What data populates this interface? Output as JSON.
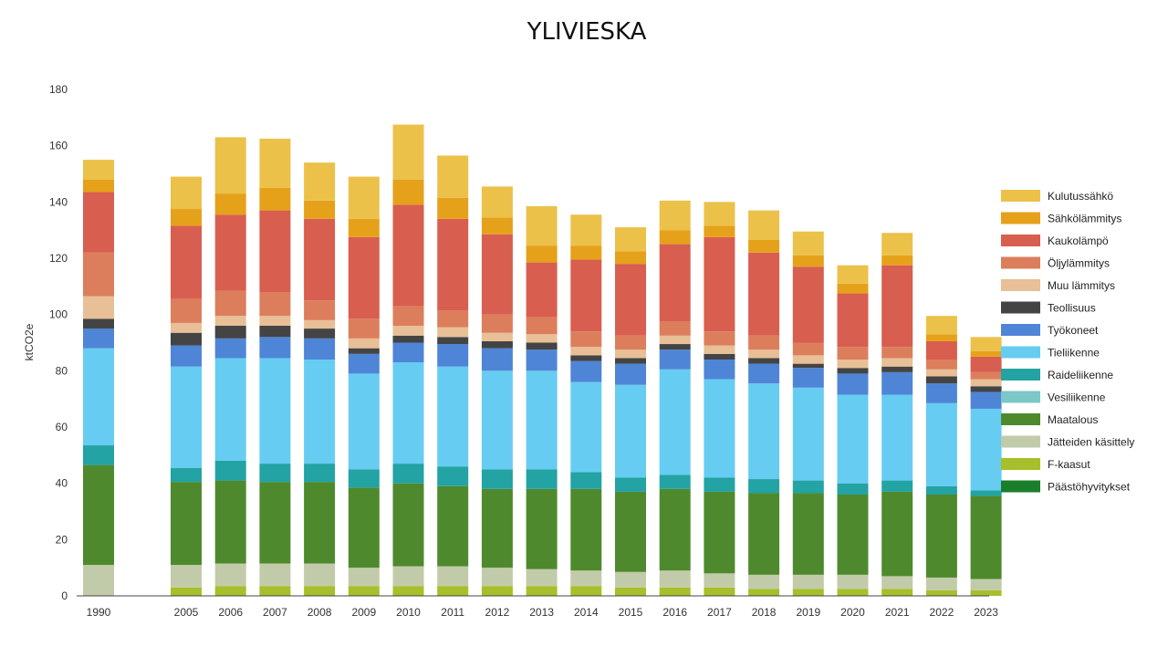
{
  "chart_data": {
    "type": "bar",
    "stacked": true,
    "title": "YLIVIESKA",
    "xlabel": "",
    "ylabel": "ktCO2e",
    "ylim": [
      0,
      180
    ],
    "yticks": [
      0,
      20,
      40,
      60,
      80,
      100,
      120,
      140,
      160,
      180
    ],
    "grid": false,
    "legend_position": "right",
    "categories": [
      "1990",
      "2005",
      "2006",
      "2007",
      "2008",
      "2009",
      "2010",
      "2011",
      "2012",
      "2013",
      "2014",
      "2015",
      "2016",
      "2017",
      "2018",
      "2019",
      "2020",
      "2021",
      "2022",
      "2023"
    ],
    "series": [
      {
        "name": "Päästöhyvitykset",
        "color": "#1a7f2a",
        "values": [
          0,
          0,
          0,
          0,
          0,
          0,
          0,
          0,
          0,
          0,
          0,
          0,
          0,
          0,
          0,
          0,
          0,
          0,
          0,
          0
        ]
      },
      {
        "name": "F-kaasut",
        "color": "#a6bf2a",
        "values": [
          0,
          3,
          3.5,
          3.5,
          3.5,
          3.5,
          3.5,
          3.5,
          3.5,
          3.5,
          3.5,
          3,
          3,
          3,
          2.5,
          2.5,
          2.5,
          2.5,
          2,
          2
        ]
      },
      {
        "name": "Jätteiden käsittely",
        "color": "#c2cba9",
        "values": [
          11,
          8,
          8,
          8,
          8,
          6.5,
          7,
          7,
          6.5,
          6,
          5.5,
          5.5,
          6,
          5,
          5,
          5,
          5,
          4.5,
          4.5,
          4
        ]
      },
      {
        "name": "Maatalous",
        "color": "#4e8a2d",
        "values": [
          35.5,
          29.5,
          29.5,
          29,
          29,
          28.5,
          29.5,
          28.5,
          28,
          28.5,
          29,
          28.5,
          29,
          29,
          29,
          29,
          28.5,
          30,
          29.5,
          29.5
        ]
      },
      {
        "name": "Vesiliikenne",
        "color": "#7cc7c7",
        "values": [
          0,
          0,
          0,
          0,
          0,
          0,
          0,
          0,
          0,
          0,
          0,
          0,
          0,
          0,
          0,
          0,
          0,
          0,
          0,
          0
        ]
      },
      {
        "name": "Raideliikenne",
        "color": "#23a3a3",
        "values": [
          7,
          5,
          7,
          6.5,
          6.5,
          6.5,
          7,
          7,
          7,
          7,
          6,
          5,
          5,
          5,
          5,
          4.5,
          4,
          4,
          3,
          2
        ]
      },
      {
        "name": "Tieliikenne",
        "color": "#66ccf2",
        "values": [
          34.5,
          36,
          36.5,
          37.5,
          37,
          34,
          36,
          35.5,
          35,
          35,
          32,
          33,
          37.5,
          35,
          34,
          33,
          31.5,
          30.5,
          29.5,
          29
        ]
      },
      {
        "name": "Työkoneet",
        "color": "#4f85d6",
        "values": [
          7,
          7.5,
          7,
          7.5,
          7.5,
          7,
          7,
          8,
          8,
          7.5,
          7.5,
          7.5,
          7,
          7,
          7,
          7,
          7.5,
          8,
          7,
          6
        ]
      },
      {
        "name": "Teollisuus",
        "color": "#444444",
        "values": [
          3.5,
          4.5,
          4.5,
          4,
          3.5,
          2,
          2.5,
          2.5,
          2.5,
          2.5,
          2,
          2,
          2,
          2,
          2,
          1.5,
          2,
          2,
          2.5,
          2
        ]
      },
      {
        "name": "Muu lämmitys",
        "color": "#e8bf96",
        "values": [
          8,
          3.5,
          3.5,
          3.5,
          3,
          3.5,
          3.5,
          3.5,
          3,
          3,
          3,
          3,
          3,
          3,
          3,
          3,
          3,
          3,
          2.5,
          2.5
        ]
      },
      {
        "name": "Öljylämmitys",
        "color": "#dc7e5c",
        "values": [
          15.5,
          8.5,
          9,
          8.5,
          7,
          7,
          7,
          6,
          6.5,
          6,
          5.5,
          5,
          5,
          5,
          5,
          4.5,
          4.5,
          4,
          3.5,
          2.5
        ]
      },
      {
        "name": "Kaukolämpö",
        "color": "#d85e4f",
        "values": [
          21.5,
          26,
          27,
          29,
          29,
          29,
          36,
          32.5,
          28.5,
          19.5,
          25.5,
          25.5,
          27.5,
          33.5,
          29.5,
          27,
          19,
          29,
          6.5,
          5.5
        ]
      },
      {
        "name": "Sähkölämmitys",
        "color": "#e6a11a",
        "values": [
          4.5,
          6,
          7.5,
          8,
          6.5,
          6.5,
          9,
          7.5,
          6,
          6,
          5,
          4.5,
          5,
          4,
          4.5,
          4,
          3.5,
          3.5,
          2.5,
          2
        ]
      },
      {
        "name": "Kulutussähkö",
        "color": "#ecc149",
        "values": [
          7,
          11.5,
          20,
          17.5,
          13.5,
          15,
          19.5,
          15,
          11,
          14,
          11,
          8.5,
          10.5,
          8.5,
          10.5,
          8.5,
          6.5,
          8,
          6.5,
          5
        ]
      }
    ]
  }
}
